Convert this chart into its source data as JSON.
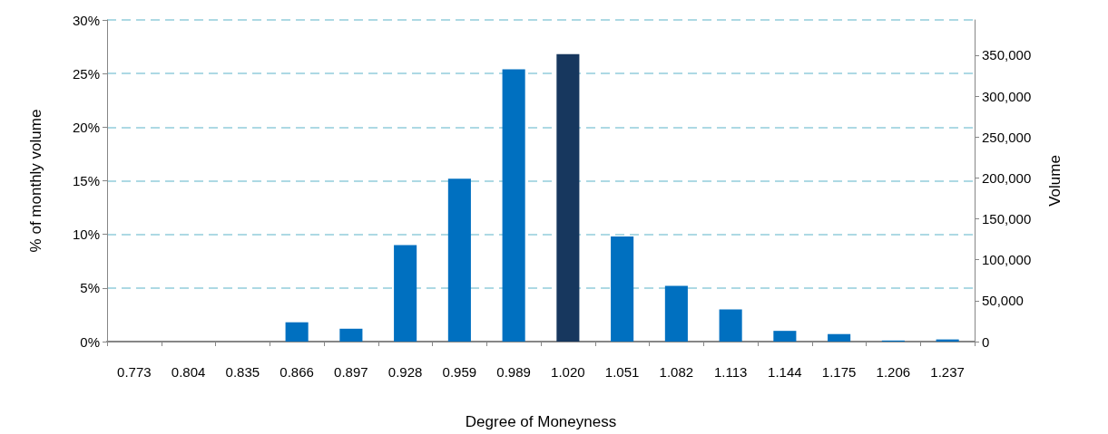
{
  "chart_data": {
    "type": "bar",
    "xlabel": "Degree of Moneyness",
    "ylabel": "% of monthly volume",
    "y2label": "Volume",
    "categories": [
      "0.773",
      "0.804",
      "0.835",
      "0.866",
      "0.897",
      "0.928",
      "0.959",
      "0.989",
      "1.020",
      "1.051",
      "1.082",
      "1.113",
      "1.144",
      "1.175",
      "1.206",
      "1.237"
    ],
    "values": [
      0,
      0,
      0,
      1.8,
      1.2,
      9.0,
      15.2,
      25.4,
      26.8,
      9.8,
      5.2,
      3.0,
      1.0,
      0.7,
      0.1,
      0.2
    ],
    "colors": [
      "#0070c0",
      "#0070c0",
      "#0070c0",
      "#0070c0",
      "#0070c0",
      "#0070c0",
      "#0070c0",
      "#0070c0",
      "#17375e",
      "#0070c0",
      "#0070c0",
      "#0070c0",
      "#0070c0",
      "#0070c0",
      "#0070c0",
      "#0070c0"
    ],
    "ylim": [
      0,
      30
    ],
    "yticks": [
      {
        "value": 0,
        "label": "0%"
      },
      {
        "value": 5,
        "label": "5%"
      },
      {
        "value": 10,
        "label": "10%"
      },
      {
        "value": 15,
        "label": "15%"
      },
      {
        "value": 20,
        "label": "20%"
      },
      {
        "value": 25,
        "label": "25%"
      },
      {
        "value": 30,
        "label": "30%"
      }
    ],
    "y2lim": [
      0,
      393000
    ],
    "y2ticks": [
      {
        "value": 0,
        "label": "0"
      },
      {
        "value": 50000,
        "label": "50,000"
      },
      {
        "value": 100000,
        "label": "100,000"
      },
      {
        "value": 150000,
        "label": "150,000"
      },
      {
        "value": 200000,
        "label": "200,000"
      },
      {
        "value": 250000,
        "label": "250,000"
      },
      {
        "value": 300000,
        "label": "300,000"
      },
      {
        "value": 350000,
        "label": "350,000"
      }
    ],
    "grid": "y"
  }
}
